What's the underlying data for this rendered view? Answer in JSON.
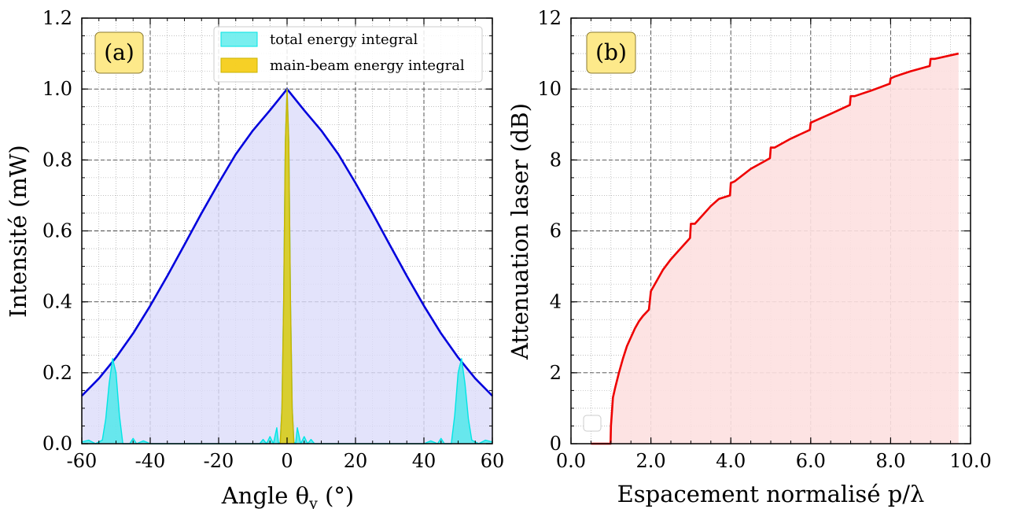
{
  "chart_data": [
    {
      "type": "line",
      "panel_label": "(a)",
      "xlabel": "Angle θ",
      "xlabel_sub": "y",
      "xlabel_unit": "(°)",
      "ylabel": "Intensité (mW)",
      "xlim": [
        -60,
        60
      ],
      "ylim": [
        0,
        1.2
      ],
      "x_ticks": [
        -60,
        -40,
        -20,
        0,
        20,
        40,
        60
      ],
      "x_tick_labels": [
        "-60",
        "-40",
        "-20",
        "0",
        "20",
        "40",
        "60"
      ],
      "y_ticks": [
        0,
        0.2,
        0.4,
        0.6,
        0.8,
        1.0,
        1.2
      ],
      "y_tick_labels": [
        "0.0",
        "0.2",
        "0.4",
        "0.6",
        "0.8",
        "1.0",
        "1.2"
      ],
      "grid": true,
      "legend_position": "top-right",
      "series": [
        {
          "role": "envelope",
          "color": "#0000dd",
          "fill": "#dcdcfa",
          "x": [
            -60,
            -55,
            -50,
            -45,
            -40,
            -35,
            -30,
            -25,
            -20,
            -15,
            -10,
            -5,
            0,
            5,
            10,
            15,
            20,
            25,
            30,
            35,
            40,
            45,
            50,
            55,
            60
          ],
          "y": [
            0.135,
            0.184,
            0.243,
            0.311,
            0.389,
            0.473,
            0.561,
            0.65,
            0.735,
            0.816,
            0.883,
            0.94,
            1.0,
            0.94,
            0.883,
            0.816,
            0.735,
            0.65,
            0.561,
            0.473,
            0.389,
            0.311,
            0.243,
            0.184,
            0.135
          ]
        },
        {
          "name": "total energy integral",
          "color": "#00e5e5",
          "fill": "#3ee8e8",
          "x": [
            -60,
            -58,
            -56,
            -54,
            -53,
            -52,
            -51,
            -50,
            -49,
            -48,
            -46,
            -45,
            -44,
            -42,
            -40,
            -35,
            -30,
            -25,
            -20,
            -15,
            -10,
            -8,
            -7,
            -6,
            -5,
            -4,
            -3,
            -2.5,
            -2,
            -1.5,
            -1,
            -0.5,
            0,
            0.5,
            1,
            1.5,
            2,
            2.5,
            3,
            4,
            5,
            6,
            7,
            8,
            10,
            15,
            20,
            25,
            30,
            35,
            40,
            42,
            44,
            45,
            46,
            48,
            49,
            50,
            51,
            52,
            53,
            54,
            56,
            58,
            60
          ],
          "y": [
            0.005,
            0.01,
            0.0,
            0.01,
            0.07,
            0.17,
            0.24,
            0.2,
            0.08,
            0.0,
            0.0,
            0.015,
            0.0,
            0.008,
            0.0,
            0.0,
            0.0,
            0.0,
            0.0,
            0.0,
            0.0,
            0.0,
            0.012,
            0.0,
            0.02,
            0.0,
            0.045,
            0.0,
            0.005,
            0.1,
            0.4,
            0.85,
            1.0,
            0.85,
            0.4,
            0.1,
            0.005,
            0.0,
            0.045,
            0.0,
            0.02,
            0.0,
            0.012,
            0.0,
            0.0,
            0.0,
            0.0,
            0.0,
            0.0,
            0.0,
            0.0,
            0.008,
            0.0,
            0.015,
            0.0,
            0.0,
            0.08,
            0.2,
            0.24,
            0.17,
            0.07,
            0.01,
            0.0,
            0.01,
            0.005
          ]
        },
        {
          "name": "main-beam energy integral",
          "color": "#c8b400",
          "fill": "#f5c800",
          "x": [
            -2,
            -1.5,
            -1,
            -0.5,
            0,
            0.5,
            1,
            1.5,
            2
          ],
          "y": [
            0.0,
            0.1,
            0.4,
            0.85,
            1.0,
            0.85,
            0.4,
            0.1,
            0.0
          ]
        }
      ]
    },
    {
      "type": "line",
      "panel_label": "(b)",
      "xlabel": "Espacement normalisé p/λ",
      "ylabel": "Attenuation laser (dB)",
      "xlim": [
        0,
        10
      ],
      "ylim": [
        0,
        12
      ],
      "x_ticks": [
        0,
        2,
        4,
        6,
        8,
        10
      ],
      "x_tick_labels": [
        "0.0",
        "2.0",
        "4.0",
        "6.0",
        "8.0",
        "10.0"
      ],
      "y_ticks": [
        0,
        2,
        4,
        6,
        8,
        10,
        12
      ],
      "y_tick_labels": [
        "0",
        "2",
        "4",
        "6",
        "8",
        "10",
        "12"
      ],
      "grid": true,
      "legend_position": "bottom-left",
      "series": [
        {
          "color": "#ee0000",
          "fill": "#fde0e0",
          "x": [
            0.5,
            0.99,
            1.0,
            1.05,
            1.1,
            1.2,
            1.3,
            1.4,
            1.5,
            1.6,
            1.7,
            1.8,
            1.95,
            2.0,
            2.1,
            2.3,
            2.5,
            2.7,
            2.9,
            2.98,
            3.0,
            3.1,
            3.3,
            3.5,
            3.7,
            3.98,
            4.0,
            4.1,
            4.5,
            4.98,
            5.0,
            5.1,
            5.5,
            5.98,
            6.0,
            6.1,
            6.5,
            6.98,
            7.0,
            7.1,
            7.5,
            7.98,
            8.0,
            8.1,
            8.5,
            8.98,
            9.0,
            9.1,
            9.7
          ],
          "y": [
            0.0,
            0.0,
            0.5,
            1.3,
            1.55,
            2.0,
            2.4,
            2.75,
            3.0,
            3.25,
            3.45,
            3.6,
            3.78,
            4.3,
            4.5,
            4.9,
            5.2,
            5.45,
            5.7,
            5.8,
            6.2,
            6.2,
            6.45,
            6.7,
            6.9,
            7.0,
            7.35,
            7.4,
            7.75,
            8.05,
            8.35,
            8.35,
            8.6,
            8.85,
            9.05,
            9.1,
            9.3,
            9.55,
            9.8,
            9.8,
            9.95,
            10.15,
            10.3,
            10.35,
            10.5,
            10.65,
            10.85,
            10.85,
            11.0
          ]
        }
      ]
    }
  ]
}
